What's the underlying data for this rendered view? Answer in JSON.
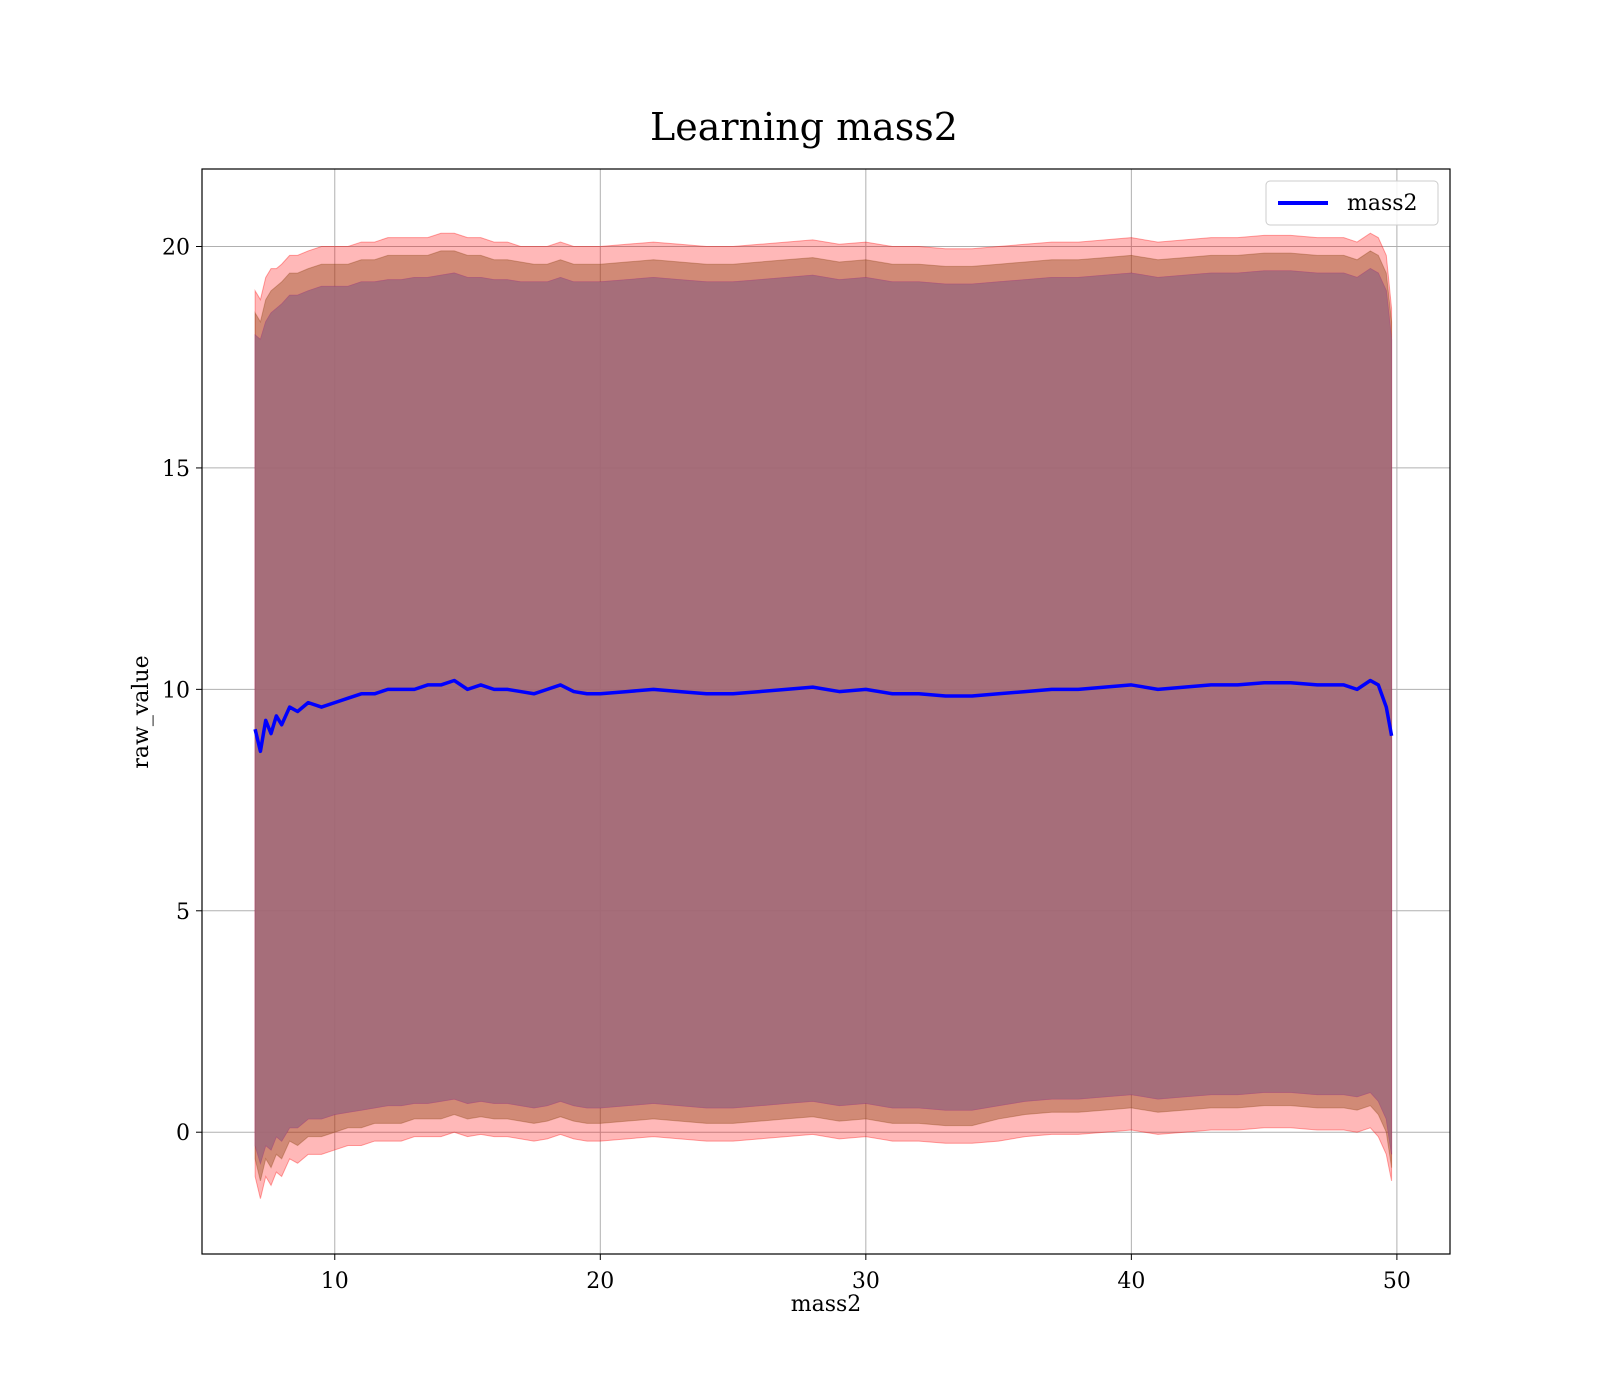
{
  "chart_data": {
    "type": "line",
    "title": "Learning mass2",
    "xlabel": "mass2",
    "ylabel": "raw_value",
    "xlim": [
      5,
      52
    ],
    "ylim": [
      -2.75,
      21.75
    ],
    "xticks": [
      10,
      20,
      30,
      40,
      50
    ],
    "yticks": [
      0,
      5,
      10,
      15,
      20
    ],
    "grid": true,
    "legend_position": "top-right",
    "colors": {
      "line": "#0000ff",
      "outer_band": "#ff0000",
      "inner_band": "#8b4513",
      "core_band": "#800080"
    },
    "series": [
      {
        "name": "mass2",
        "x": [
          7.0,
          7.2,
          7.4,
          7.6,
          7.8,
          8.0,
          8.3,
          8.6,
          9.0,
          9.5,
          10.0,
          10.5,
          11.0,
          11.5,
          12.0,
          12.5,
          13.0,
          13.5,
          14.0,
          14.5,
          15.0,
          15.5,
          16.0,
          16.5,
          17.0,
          17.5,
          18.0,
          18.5,
          19.0,
          19.5,
          20.0,
          21.0,
          22.0,
          23.0,
          24.0,
          25.0,
          26.0,
          27.0,
          28.0,
          29.0,
          30.0,
          31.0,
          32.0,
          33.0,
          34.0,
          35.0,
          36.0,
          37.0,
          38.0,
          39.0,
          40.0,
          41.0,
          42.0,
          43.0,
          44.0,
          45.0,
          46.0,
          47.0,
          48.0,
          48.5,
          49.0,
          49.3,
          49.6,
          49.8
        ],
        "y": [
          9.1,
          8.6,
          9.3,
          9.0,
          9.4,
          9.2,
          9.6,
          9.5,
          9.7,
          9.6,
          9.7,
          9.8,
          9.9,
          9.9,
          10.0,
          10.0,
          10.0,
          10.1,
          10.1,
          10.2,
          10.0,
          10.1,
          10.0,
          10.0,
          9.95,
          9.9,
          10.0,
          10.1,
          9.95,
          9.9,
          9.9,
          9.95,
          10.0,
          9.95,
          9.9,
          9.9,
          9.95,
          10.0,
          10.05,
          9.95,
          10.0,
          9.9,
          9.9,
          9.85,
          9.85,
          9.9,
          9.95,
          10.0,
          10.0,
          10.05,
          10.1,
          10.0,
          10.05,
          10.1,
          10.1,
          10.15,
          10.15,
          10.1,
          10.1,
          10.0,
          10.2,
          10.1,
          9.6,
          8.95
        ]
      }
    ],
    "bands": {
      "outer": {
        "upper": [
          19.0,
          18.8,
          19.3,
          19.5,
          19.5,
          19.6,
          19.8,
          19.8,
          19.9,
          20.0,
          20.0,
          20.0,
          20.1,
          20.1,
          20.2,
          20.2,
          20.2,
          20.2,
          20.3,
          20.3,
          20.2,
          20.2,
          20.1,
          20.1,
          20.0,
          20.0,
          20.0,
          20.1,
          20.0,
          20.0,
          20.0,
          20.05,
          20.1,
          20.05,
          20.0,
          20.0,
          20.05,
          20.1,
          20.15,
          20.05,
          20.1,
          20.0,
          20.0,
          19.95,
          19.95,
          20.0,
          20.05,
          20.1,
          20.1,
          20.15,
          20.2,
          20.1,
          20.15,
          20.2,
          20.2,
          20.25,
          20.25,
          20.2,
          20.2,
          20.1,
          20.3,
          20.2,
          19.8,
          18.6
        ],
        "lower": [
          -1.0,
          -1.5,
          -1.0,
          -1.2,
          -0.9,
          -1.0,
          -0.6,
          -0.7,
          -0.5,
          -0.5,
          -0.4,
          -0.3,
          -0.3,
          -0.2,
          -0.2,
          -0.2,
          -0.1,
          -0.1,
          -0.1,
          0.0,
          -0.1,
          -0.05,
          -0.1,
          -0.1,
          -0.15,
          -0.2,
          -0.15,
          -0.05,
          -0.15,
          -0.2,
          -0.2,
          -0.15,
          -0.1,
          -0.15,
          -0.2,
          -0.2,
          -0.15,
          -0.1,
          -0.05,
          -0.15,
          -0.1,
          -0.2,
          -0.2,
          -0.25,
          -0.25,
          -0.2,
          -0.1,
          -0.05,
          -0.05,
          0.0,
          0.05,
          -0.05,
          0.0,
          0.05,
          0.05,
          0.1,
          0.1,
          0.05,
          0.05,
          0.0,
          0.1,
          -0.1,
          -0.5,
          -1.1
        ]
      },
      "inner": {
        "upper": [
          18.5,
          18.3,
          18.8,
          19.0,
          19.1,
          19.2,
          19.4,
          19.4,
          19.5,
          19.6,
          19.6,
          19.6,
          19.7,
          19.7,
          19.8,
          19.8,
          19.8,
          19.8,
          19.9,
          19.9,
          19.8,
          19.8,
          19.7,
          19.7,
          19.65,
          19.6,
          19.6,
          19.7,
          19.6,
          19.6,
          19.6,
          19.65,
          19.7,
          19.65,
          19.6,
          19.6,
          19.65,
          19.7,
          19.75,
          19.65,
          19.7,
          19.6,
          19.6,
          19.55,
          19.55,
          19.6,
          19.65,
          19.7,
          19.7,
          19.75,
          19.8,
          19.7,
          19.75,
          19.8,
          19.8,
          19.85,
          19.85,
          19.8,
          19.8,
          19.7,
          19.9,
          19.8,
          19.4,
          18.3
        ],
        "lower": [
          -0.6,
          -1.1,
          -0.6,
          -0.8,
          -0.5,
          -0.6,
          -0.2,
          -0.3,
          -0.1,
          -0.1,
          0.0,
          0.1,
          0.1,
          0.2,
          0.2,
          0.2,
          0.3,
          0.3,
          0.3,
          0.4,
          0.3,
          0.35,
          0.3,
          0.3,
          0.25,
          0.2,
          0.25,
          0.35,
          0.25,
          0.2,
          0.2,
          0.25,
          0.3,
          0.25,
          0.2,
          0.2,
          0.25,
          0.3,
          0.35,
          0.25,
          0.3,
          0.2,
          0.2,
          0.15,
          0.15,
          0.3,
          0.4,
          0.45,
          0.45,
          0.5,
          0.55,
          0.45,
          0.5,
          0.55,
          0.55,
          0.6,
          0.6,
          0.55,
          0.55,
          0.5,
          0.6,
          0.4,
          0.0,
          -0.8
        ]
      },
      "core": {
        "upper": [
          18.0,
          17.9,
          18.3,
          18.5,
          18.6,
          18.7,
          18.9,
          18.9,
          19.0,
          19.1,
          19.1,
          19.1,
          19.2,
          19.2,
          19.25,
          19.25,
          19.3,
          19.3,
          19.35,
          19.4,
          19.3,
          19.3,
          19.25,
          19.25,
          19.2,
          19.2,
          19.2,
          19.3,
          19.2,
          19.2,
          19.2,
          19.25,
          19.3,
          19.25,
          19.2,
          19.2,
          19.25,
          19.3,
          19.35,
          19.25,
          19.3,
          19.2,
          19.2,
          19.15,
          19.15,
          19.2,
          19.25,
          19.3,
          19.3,
          19.35,
          19.4,
          19.3,
          19.35,
          19.4,
          19.4,
          19.45,
          19.45,
          19.4,
          19.4,
          19.3,
          19.5,
          19.4,
          19.0,
          17.9
        ],
        "lower": [
          -0.3,
          -0.7,
          -0.3,
          -0.4,
          -0.1,
          -0.2,
          0.1,
          0.1,
          0.3,
          0.3,
          0.4,
          0.45,
          0.5,
          0.55,
          0.6,
          0.6,
          0.65,
          0.65,
          0.7,
          0.75,
          0.65,
          0.7,
          0.65,
          0.65,
          0.6,
          0.55,
          0.6,
          0.7,
          0.6,
          0.55,
          0.55,
          0.6,
          0.65,
          0.6,
          0.55,
          0.55,
          0.6,
          0.65,
          0.7,
          0.6,
          0.65,
          0.55,
          0.55,
          0.5,
          0.5,
          0.6,
          0.7,
          0.75,
          0.75,
          0.8,
          0.85,
          0.75,
          0.8,
          0.85,
          0.85,
          0.9,
          0.9,
          0.85,
          0.85,
          0.8,
          0.9,
          0.7,
          0.3,
          -0.5
        ]
      }
    }
  }
}
